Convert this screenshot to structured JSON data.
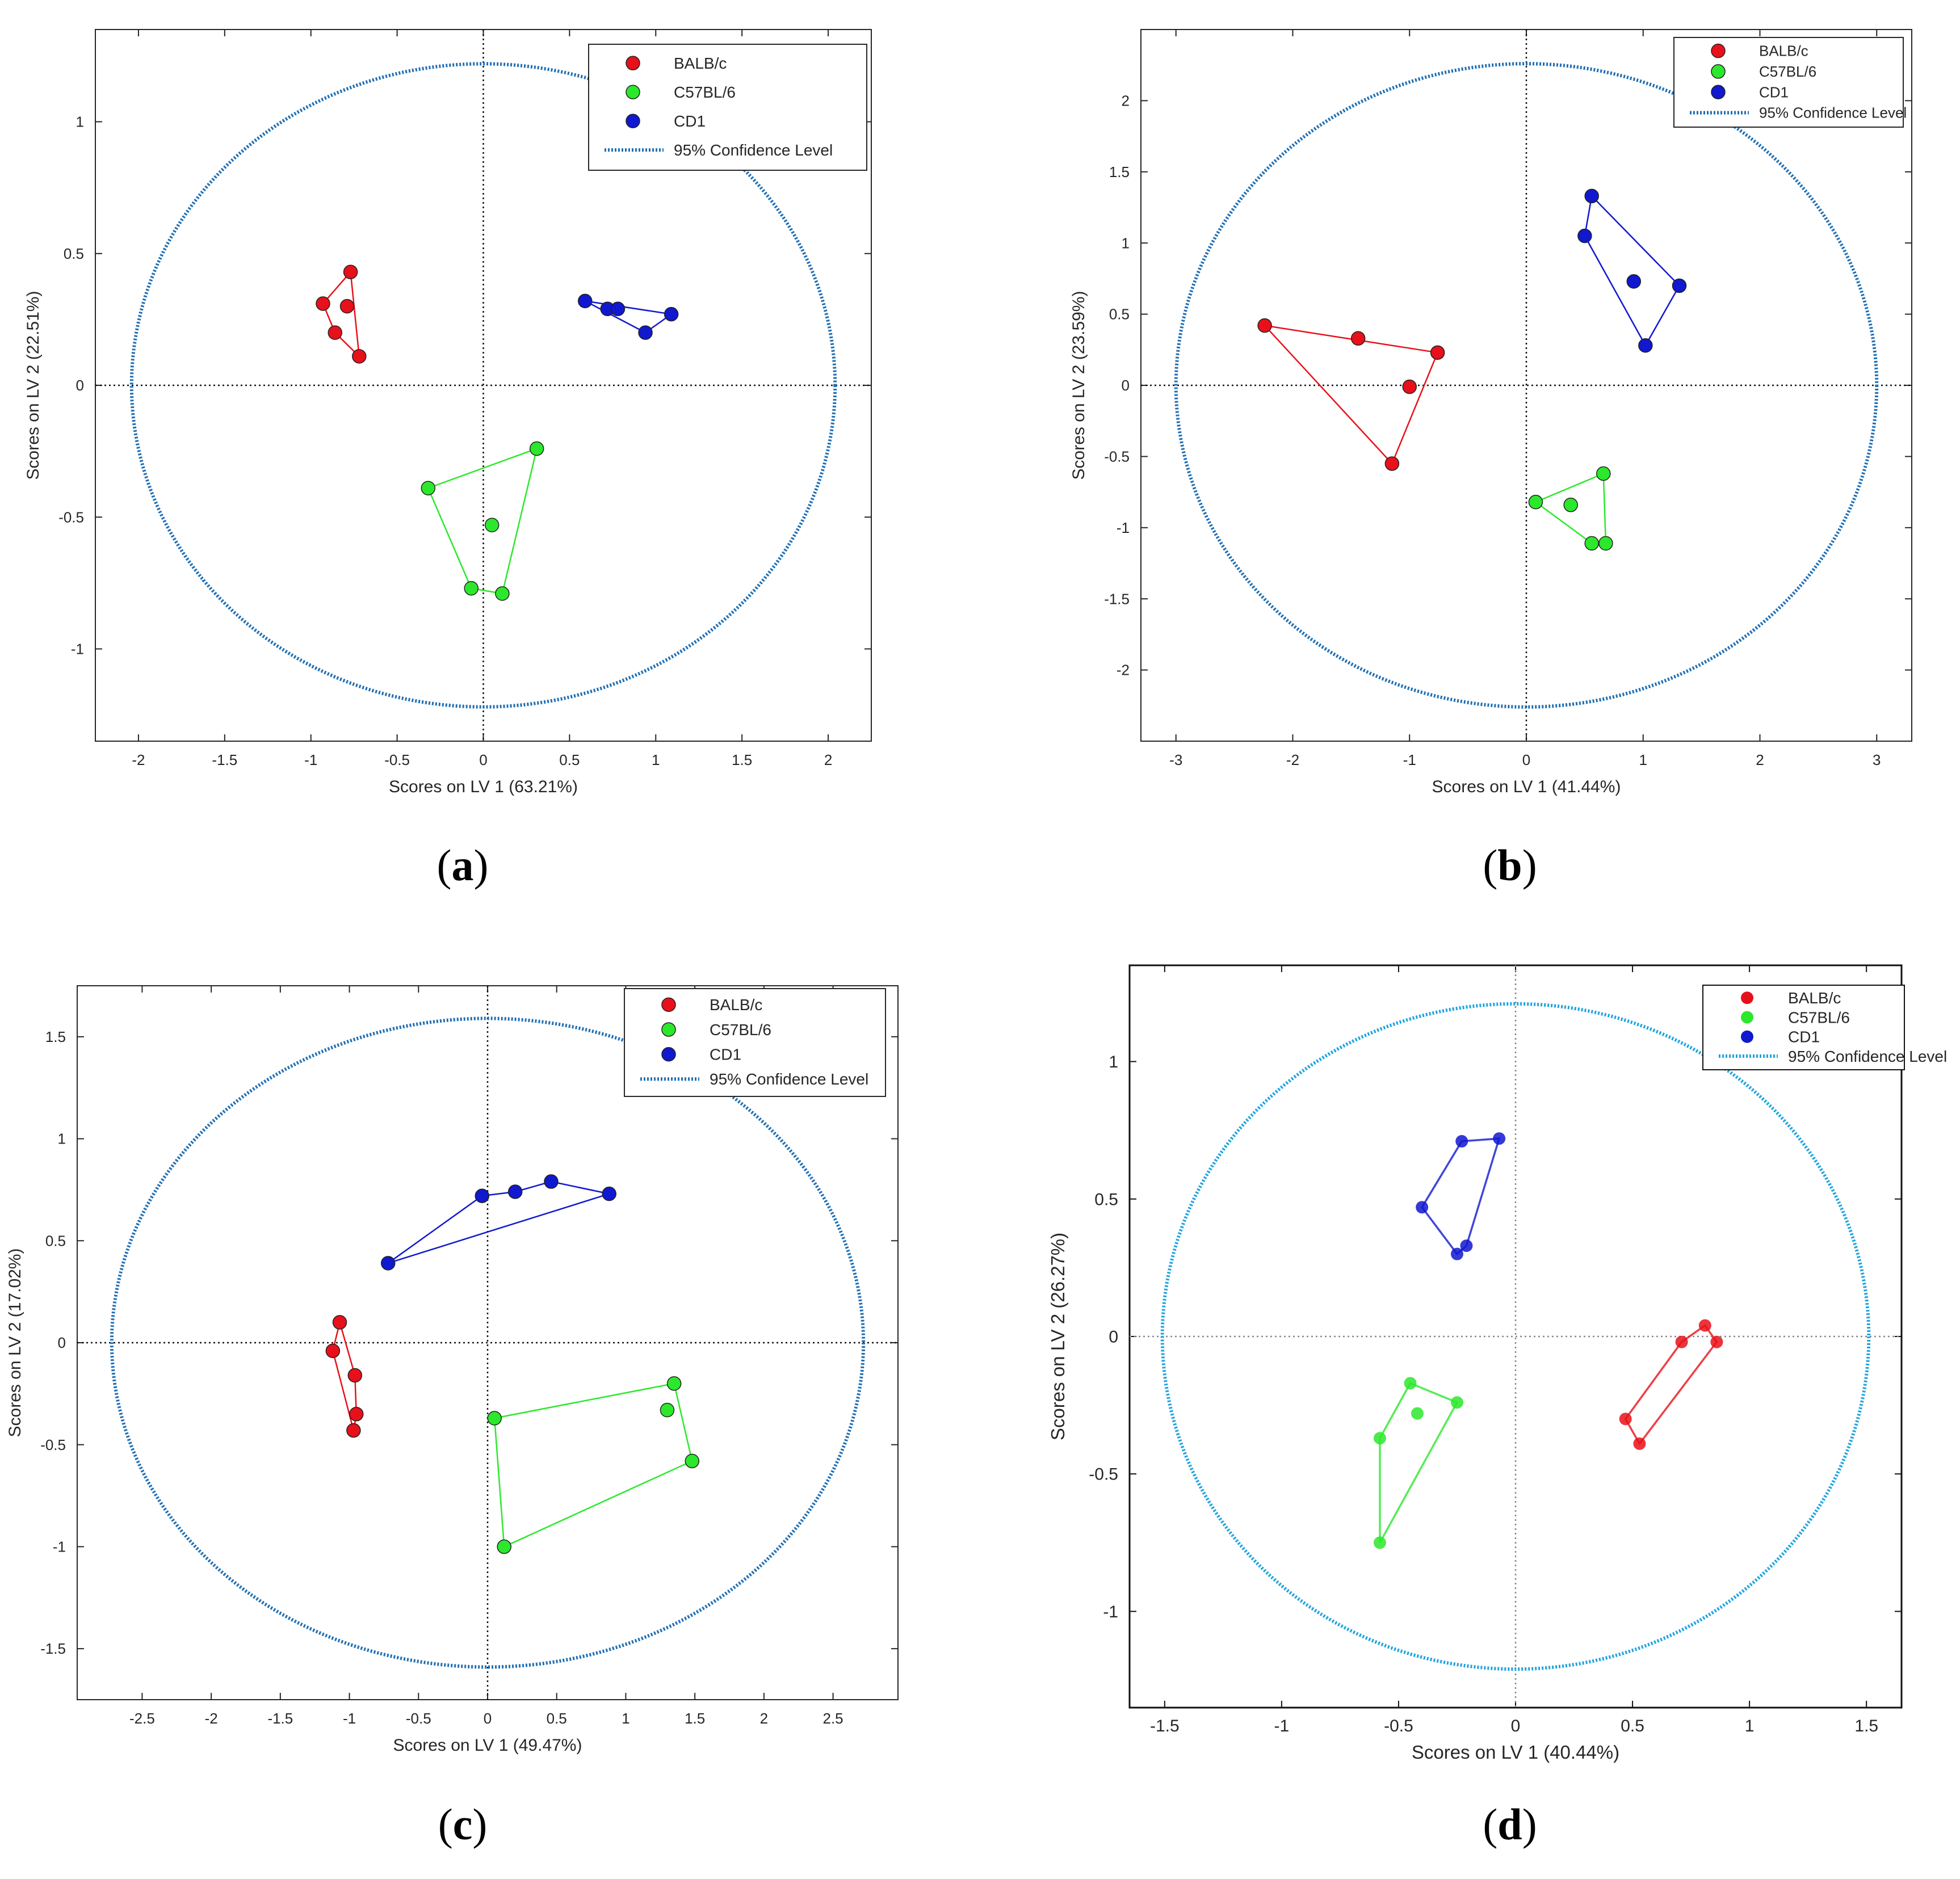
{
  "subplot_labels": [
    "a",
    "b",
    "c",
    "d"
  ],
  "colors": {
    "balb": "#e8101a",
    "c57": "#2ce82c",
    "cd1": "#1018d0",
    "ellipse": "#1f6fb4",
    "ellipse_d": "#1ea3e0",
    "axis": "#262626"
  },
  "chart_data": [
    {
      "type": "scatter",
      "panel": "a",
      "title": "",
      "xlabel": "Scores on LV 1 (63.21%)",
      "ylabel": "Scores on LV 2 (22.51%)",
      "xlim": [
        -2.25,
        2.25
      ],
      "ylim": [
        -1.35,
        1.35
      ],
      "xticks": [
        -2,
        -1.5,
        -1,
        -0.5,
        0,
        0.5,
        1,
        1.5,
        2
      ],
      "yticks": [
        -1,
        -0.5,
        0,
        0.5,
        1
      ],
      "ellipse": {
        "rx": 2.04,
        "ry": 1.22
      },
      "legend": {
        "position": "top-right",
        "entries": [
          "BALB/c",
          "C57BL/6",
          "CD1",
          "95% Confidence Level"
        ]
      },
      "series": [
        {
          "name": "BALB/c",
          "points": [
            [
              -0.77,
              0.43
            ],
            [
              -0.93,
              0.31
            ],
            [
              -0.79,
              0.3
            ],
            [
              -0.86,
              0.2
            ],
            [
              -0.72,
              0.11
            ]
          ],
          "hull": [
            0,
            4,
            3,
            1
          ]
        },
        {
          "name": "C57BL/6",
          "points": [
            [
              0.31,
              -0.24
            ],
            [
              -0.32,
              -0.39
            ],
            [
              0.05,
              -0.53
            ],
            [
              -0.07,
              -0.77
            ],
            [
              0.11,
              -0.79
            ]
          ],
          "hull": [
            0,
            1,
            3,
            4
          ]
        },
        {
          "name": "CD1",
          "points": [
            [
              0.59,
              0.32
            ],
            [
              0.72,
              0.29
            ],
            [
              0.78,
              0.29
            ],
            [
              1.09,
              0.27
            ],
            [
              0.94,
              0.2
            ]
          ],
          "hull": [
            0,
            3,
            4
          ]
        }
      ]
    },
    {
      "type": "scatter",
      "panel": "b",
      "title": "",
      "xlabel": "Scores on LV 1 (41.44%)",
      "ylabel": "Scores on LV 2 (23.59%)",
      "xlim": [
        -3.3,
        3.3
      ],
      "ylim": [
        -2.5,
        2.5
      ],
      "xticks": [
        -3,
        -2,
        -1,
        0,
        1,
        2,
        3
      ],
      "yticks": [
        -2,
        -1.5,
        -1,
        -0.5,
        0,
        0.5,
        1,
        1.5,
        2
      ],
      "ellipse": {
        "rx": 3.0,
        "ry": 2.26
      },
      "legend": {
        "position": "top-right",
        "entries": [
          "BALB/c",
          "C57BL/6",
          "CD1",
          "95% Confidence Level"
        ]
      },
      "series": [
        {
          "name": "BALB/c",
          "points": [
            [
              -2.24,
              0.42
            ],
            [
              -1.44,
              0.33
            ],
            [
              -0.76,
              0.23
            ],
            [
              -1.0,
              -0.01
            ],
            [
              -1.15,
              -0.55
            ]
          ],
          "hull": [
            0,
            2,
            4
          ]
        },
        {
          "name": "C57BL/6",
          "points": [
            [
              0.66,
              -0.62
            ],
            [
              0.08,
              -0.82
            ],
            [
              0.38,
              -0.84
            ],
            [
              0.56,
              -1.11
            ],
            [
              0.68,
              -1.11
            ]
          ],
          "hull": [
            0,
            1,
            3,
            4
          ]
        },
        {
          "name": "CD1",
          "points": [
            [
              0.56,
              1.33
            ],
            [
              0.5,
              1.05
            ],
            [
              0.92,
              0.73
            ],
            [
              1.31,
              0.7
            ],
            [
              1.02,
              0.28
            ]
          ],
          "hull": [
            0,
            1,
            4,
            3
          ]
        }
      ]
    },
    {
      "type": "scatter",
      "panel": "c",
      "title": "",
      "xlabel": "Scores on LV 1 (49.47%)",
      "ylabel": "Scores on LV 2 (17.02%)",
      "xlim": [
        -2.97,
        2.97
      ],
      "ylim": [
        -1.75,
        1.75
      ],
      "xticks": [
        -2.5,
        -2,
        -1.5,
        -1,
        -0.5,
        0,
        0.5,
        1,
        1.5,
        2,
        2.5
      ],
      "yticks": [
        -1.5,
        -1,
        -0.5,
        0,
        0.5,
        1,
        1.5
      ],
      "ellipse": {
        "rx": 2.72,
        "ry": 1.59
      },
      "legend": {
        "position": "top-right",
        "entries": [
          "BALB/c",
          "C57BL/6",
          "CD1",
          "95% Confidence Level"
        ]
      },
      "series": [
        {
          "name": "BALB/c",
          "points": [
            [
              -1.07,
              0.1
            ],
            [
              -1.12,
              -0.04
            ],
            [
              -0.96,
              -0.16
            ],
            [
              -0.95,
              -0.35
            ],
            [
              -0.97,
              -0.43
            ]
          ],
          "hull": [
            0,
            1,
            4,
            3,
            2
          ]
        },
        {
          "name": "C57BL/6",
          "points": [
            [
              1.35,
              -0.2
            ],
            [
              1.3,
              -0.33
            ],
            [
              1.48,
              -0.58
            ],
            [
              0.05,
              -0.37
            ],
            [
              0.12,
              -1.0
            ]
          ],
          "hull": [
            0,
            2,
            4,
            3
          ]
        },
        {
          "name": "CD1",
          "points": [
            [
              0.88,
              0.73
            ],
            [
              0.46,
              0.79
            ],
            [
              0.2,
              0.74
            ],
            [
              -0.04,
              0.72
            ],
            [
              -0.72,
              0.39
            ]
          ],
          "hull": [
            0,
            1,
            2,
            3,
            4
          ]
        }
      ]
    },
    {
      "type": "scatter",
      "panel": "d",
      "title": "",
      "xlabel": "Scores on LV 1 (40.44%)",
      "ylabel": "Scores on LV 2 (26.27%)",
      "xlim": [
        -1.65,
        1.65
      ],
      "ylim": [
        -1.35,
        1.35
      ],
      "xticks": [
        -1.5,
        -1,
        -0.5,
        0,
        0.5,
        1,
        1.5
      ],
      "yticks": [
        -1,
        -0.5,
        0,
        0.5,
        1
      ],
      "ellipse": {
        "rx": 1.51,
        "ry": 1.21
      },
      "legend": {
        "position": "top-right",
        "entries": [
          "BALB/c",
          "C57BL/6",
          "CD1",
          "95% Confidence Level"
        ]
      },
      "series": [
        {
          "name": "BALB/c",
          "points": [
            [
              0.81,
              0.04
            ],
            [
              0.71,
              -0.02
            ],
            [
              0.86,
              -0.02
            ],
            [
              0.47,
              -0.3
            ],
            [
              0.53,
              -0.39
            ]
          ],
          "hull": [
            0,
            2,
            4,
            3,
            1
          ]
        },
        {
          "name": "C57BL/6",
          "points": [
            [
              -0.45,
              -0.17
            ],
            [
              -0.25,
              -0.24
            ],
            [
              -0.42,
              -0.28
            ],
            [
              -0.58,
              -0.37
            ],
            [
              -0.58,
              -0.75
            ]
          ],
          "hull": [
            0,
            1,
            4,
            3
          ]
        },
        {
          "name": "CD1",
          "points": [
            [
              -0.07,
              0.72
            ],
            [
              -0.23,
              0.71
            ],
            [
              -0.4,
              0.47
            ],
            [
              -0.21,
              0.33
            ],
            [
              -0.25,
              0.3
            ]
          ],
          "hull": [
            0,
            3,
            4,
            2,
            1
          ]
        }
      ]
    }
  ]
}
